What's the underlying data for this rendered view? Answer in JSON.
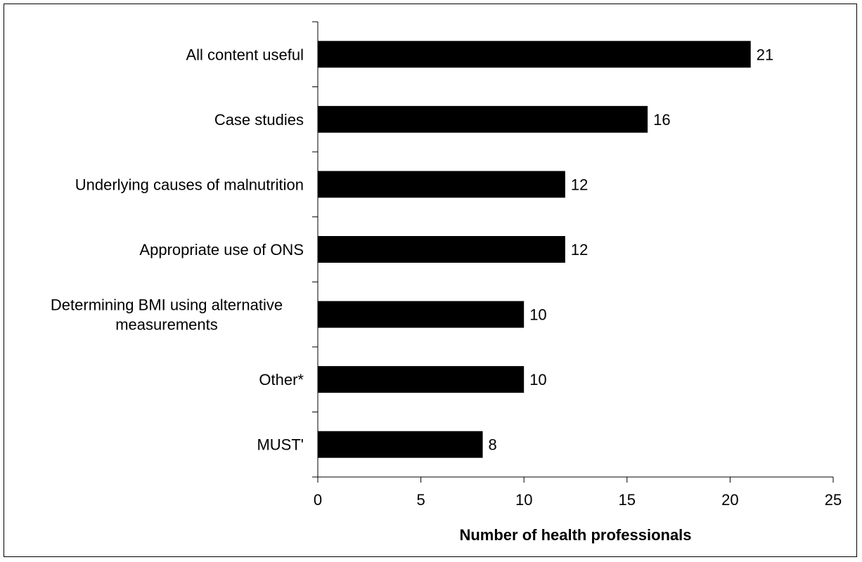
{
  "chart_data": {
    "type": "bar",
    "orientation": "horizontal",
    "title": "",
    "xlabel": "Number of health professionals",
    "ylabel": "",
    "categories": [
      [
        "All content useful"
      ],
      [
        "Case studies"
      ],
      [
        "Underlying causes of malnutrition"
      ],
      [
        "Appropriate use of ONS"
      ],
      [
        "Determining BMI using alternative",
        "measurements"
      ],
      [
        "Other*"
      ],
      [
        "MUST'"
      ]
    ],
    "values": [
      21,
      16,
      12,
      12,
      10,
      10,
      8
    ],
    "xlim": [
      0,
      25
    ],
    "xticks": [
      0,
      5,
      10,
      15,
      20,
      25
    ],
    "grid": false,
    "legend": "none",
    "bar_color": "#000000",
    "data_labels": true
  }
}
